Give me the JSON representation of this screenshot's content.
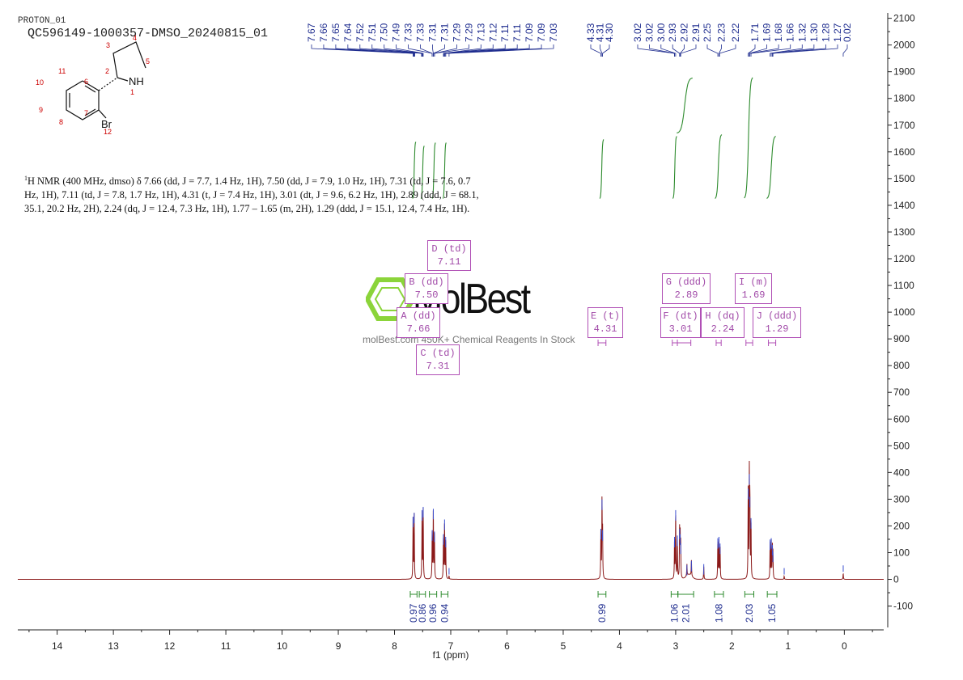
{
  "header": {
    "proton_label": "PROTON_01",
    "sample_id": "QC596149-1000357-DMSO_20240815_01"
  },
  "molecule": {
    "atom_labels": [
      "1",
      "2",
      "3",
      "4",
      "5",
      "6",
      "7",
      "8",
      "9",
      "10",
      "11",
      "12"
    ],
    "nh_label": "NH",
    "br_label": "Br"
  },
  "nmr_description": {
    "prefix": "1",
    "text": "H NMR (400 MHz, dmso) δ 7.66 (dd, J = 7.7, 1.4 Hz, 1H), 7.50 (dd, J = 7.9, 1.0 Hz, 1H), 7.31 (td, J = 7.6, 0.7 Hz, 1H), 7.11 (td, J = 7.8, 1.7 Hz, 1H), 4.31 (t, J = 7.4 Hz, 1H), 3.01 (dt, J = 9.6, 6.2 Hz, 1H), 2.89 (ddd, J = 68.1, 35.1, 20.2 Hz, 2H), 2.24 (dq, J = 12.4, 7.3 Hz, 1H), 1.77 – 1.65 (m, 2H), 1.29 (ddd, J = 15.1, 12.4, 7.4 Hz, 1H)."
  },
  "watermark": {
    "brand": "MolBest",
    "tagline": "molBest.com 450K+ Chemical Reagents In Stock"
  },
  "colors": {
    "spectrum": "#8b1a1a",
    "peak_labels": "#1f2d8f",
    "integrals": "#2e8b2e",
    "multiplets": "#b04fb5",
    "axis": "#222222"
  },
  "chart_data": {
    "type": "line",
    "xlabel": "f1 (ppm)",
    "xlim": [
      14.7,
      -0.7
    ],
    "ylim": [
      -180,
      2120
    ],
    "x_ticks": [
      14,
      13,
      12,
      11,
      10,
      9,
      8,
      7,
      6,
      5,
      4,
      3,
      2,
      1,
      0
    ],
    "y_ticks": [
      -100,
      0,
      100,
      200,
      300,
      400,
      500,
      600,
      700,
      800,
      900,
      1000,
      1100,
      1200,
      1300,
      1400,
      1500,
      1600,
      1700,
      1800,
      1900,
      2000,
      2100
    ],
    "peak_labels": [
      "7.67",
      "7.66",
      "7.65",
      "7.64",
      "7.52",
      "7.51",
      "7.50",
      "7.49",
      "7.33",
      "7.33",
      "7.31",
      "7.31",
      "7.29",
      "7.29",
      "7.13",
      "7.12",
      "7.11",
      "7.11",
      "7.09",
      "7.09",
      "7.03",
      "4.33",
      "4.31",
      "4.30",
      "3.02",
      "3.02",
      "3.00",
      "2.93",
      "2.92",
      "2.91",
      "2.25",
      "2.23",
      "2.22",
      "1.71",
      "1.69",
      "1.68",
      "1.66",
      "1.32",
      "1.30",
      "1.28",
      "1.27",
      "0.02"
    ],
    "peaks": [
      {
        "ppm": 7.67,
        "height": 225
      },
      {
        "ppm": 7.65,
        "height": 240
      },
      {
        "ppm": 7.51,
        "height": 250
      },
      {
        "ppm": 7.49,
        "height": 262
      },
      {
        "ppm": 7.33,
        "height": 175
      },
      {
        "ppm": 7.31,
        "height": 255
      },
      {
        "ppm": 7.29,
        "height": 170
      },
      {
        "ppm": 7.13,
        "height": 160
      },
      {
        "ppm": 7.11,
        "height": 215
      },
      {
        "ppm": 7.09,
        "height": 150
      },
      {
        "ppm": 7.03,
        "height": 12
      },
      {
        "ppm": 4.33,
        "height": 180
      },
      {
        "ppm": 4.31,
        "height": 290
      },
      {
        "ppm": 4.3,
        "height": 175
      },
      {
        "ppm": 3.02,
        "height": 150
      },
      {
        "ppm": 3.0,
        "height": 250
      },
      {
        "ppm": 2.97,
        "height": 155
      },
      {
        "ppm": 2.93,
        "height": 180
      },
      {
        "ppm": 2.92,
        "height": 160
      },
      {
        "ppm": 2.91,
        "height": 125
      },
      {
        "ppm": 2.8,
        "height": 45
      },
      {
        "ppm": 2.72,
        "height": 60
      },
      {
        "ppm": 2.5,
        "height": 48
      },
      {
        "ppm": 2.25,
        "height": 145
      },
      {
        "ppm": 2.23,
        "height": 150
      },
      {
        "ppm": 2.21,
        "height": 125
      },
      {
        "ppm": 1.71,
        "height": 330
      },
      {
        "ppm": 1.69,
        "height": 385
      },
      {
        "ppm": 1.68,
        "height": 300
      },
      {
        "ppm": 1.66,
        "height": 220
      },
      {
        "ppm": 1.32,
        "height": 140
      },
      {
        "ppm": 1.3,
        "height": 145
      },
      {
        "ppm": 1.28,
        "height": 120
      },
      {
        "ppm": 1.27,
        "height": 95
      },
      {
        "ppm": 1.07,
        "height": 12
      },
      {
        "ppm": 0.02,
        "height": 22
      }
    ],
    "integrals": [
      {
        "from": 7.72,
        "to": 7.6,
        "value": "0.97"
      },
      {
        "from": 7.56,
        "to": 7.45,
        "value": "0.86"
      },
      {
        "from": 7.38,
        "to": 7.25,
        "value": "0.96"
      },
      {
        "from": 7.17,
        "to": 7.05,
        "value": "0.94"
      },
      {
        "from": 4.38,
        "to": 4.24,
        "value": "0.99"
      },
      {
        "from": 3.08,
        "to": 2.96,
        "value": "1.06"
      },
      {
        "from": 2.96,
        "to": 2.68,
        "value": "2.01"
      },
      {
        "from": 2.31,
        "to": 2.15,
        "value": "1.08"
      },
      {
        "from": 1.77,
        "to": 1.61,
        "value": "2.03"
      },
      {
        "from": 1.37,
        "to": 1.2,
        "value": "1.05"
      }
    ],
    "multiplets": [
      {
        "label": "A (dd)",
        "shift": "7.66"
      },
      {
        "label": "B (dd)",
        "shift": "7.50"
      },
      {
        "label": "C (td)",
        "shift": "7.31"
      },
      {
        "label": "D (td)",
        "shift": "7.11"
      },
      {
        "label": "E (t)",
        "shift": "4.31"
      },
      {
        "label": "F (dt)",
        "shift": "3.01"
      },
      {
        "label": "G (ddd)",
        "shift": "2.89"
      },
      {
        "label": "H (dq)",
        "shift": "2.24"
      },
      {
        "label": "I (m)",
        "shift": "1.69"
      },
      {
        "label": "J (ddd)",
        "shift": "1.29"
      }
    ]
  }
}
